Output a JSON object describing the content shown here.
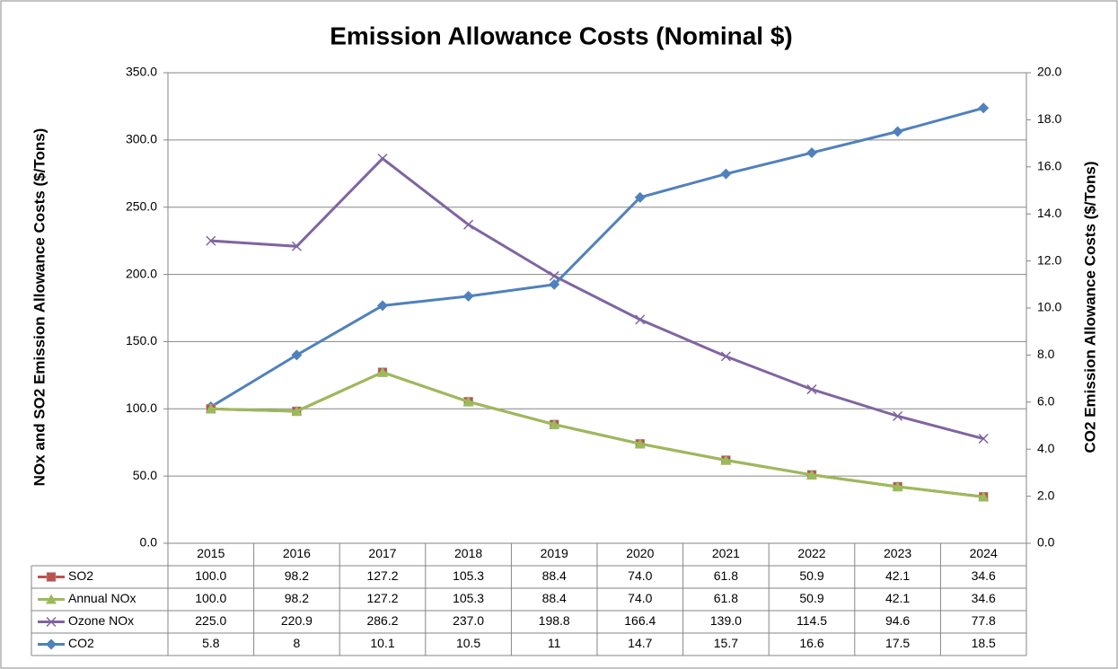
{
  "chart_data": {
    "type": "line",
    "title": "Emission Allowance Costs (Nominal $)",
    "y_label": "NOx and SO2 Emission Allowance Costs ($/Tons)",
    "y2_label": "CO2 Emission Allowance Costs ($/Tons)",
    "categories": [
      "2015",
      "2016",
      "2017",
      "2018",
      "2019",
      "2020",
      "2021",
      "2022",
      "2023",
      "2024"
    ],
    "series": [
      {
        "name": "SO2",
        "color": "#c0504d",
        "marker": "square",
        "values": [
          100.0,
          98.2,
          127.2,
          105.3,
          88.4,
          74.0,
          61.8,
          50.9,
          42.1,
          34.6
        ],
        "value_labels": [
          "100.0",
          "98.2",
          "127.2",
          "105.3",
          "88.4",
          "74.0",
          "61.8",
          "50.9",
          "42.1",
          "34.6"
        ]
      },
      {
        "name": "Annual NOx",
        "color": "#9bbb59",
        "marker": "triangle",
        "values": [
          100.0,
          98.2,
          127.2,
          105.3,
          88.4,
          74.0,
          61.8,
          50.9,
          42.1,
          34.6
        ],
        "value_labels": [
          "100.0",
          "98.2",
          "127.2",
          "105.3",
          "88.4",
          "74.0",
          "61.8",
          "50.9",
          "42.1",
          "34.6"
        ]
      },
      {
        "name": "Ozone NOx",
        "color": "#8064a2",
        "marker": "x",
        "values": [
          225.0,
          220.9,
          286.2,
          237.0,
          198.8,
          166.4,
          139.0,
          114.5,
          94.6,
          77.8
        ],
        "value_labels": [
          "225.0",
          "220.9",
          "286.2",
          "237.0",
          "198.8",
          "166.4",
          "139.0",
          "114.5",
          "94.6",
          "77.8"
        ]
      },
      {
        "name": "CO2",
        "color": "#4f81bd",
        "marker": "diamond",
        "axis": "y2",
        "values": [
          5.8,
          8.0,
          10.1,
          10.5,
          11.0,
          14.7,
          15.7,
          16.6,
          17.5,
          18.5
        ]
      }
    ],
    "ylim": [
      0,
      350
    ],
    "yticks": [
      {
        "value": 0,
        "label": "0.0"
      },
      {
        "value": 50,
        "label": "50.0"
      },
      {
        "value": 100,
        "label": "100.0"
      },
      {
        "value": 150,
        "label": "150.0"
      },
      {
        "value": 200,
        "label": "200.0"
      },
      {
        "value": 250,
        "label": "250.0"
      },
      {
        "value": 300,
        "label": "300.0"
      },
      {
        "value": 350,
        "label": "350.0"
      }
    ],
    "y2lim": [
      0,
      20
    ],
    "y2ticks": [
      {
        "value": 0,
        "label": "0.0"
      },
      {
        "value": 2,
        "label": "2.0"
      },
      {
        "value": 4,
        "label": "4.0"
      },
      {
        "value": 6,
        "label": "6.0"
      },
      {
        "value": 8,
        "label": "8.0"
      },
      {
        "value": 10,
        "label": "10.0"
      },
      {
        "value": 12,
        "label": "12.0"
      },
      {
        "value": 14,
        "label": "14.0"
      },
      {
        "value": 16,
        "label": "16.0"
      },
      {
        "value": 18,
        "label": "18.0"
      },
      {
        "value": 20,
        "label": "20.0"
      }
    ],
    "grid": true
  }
}
